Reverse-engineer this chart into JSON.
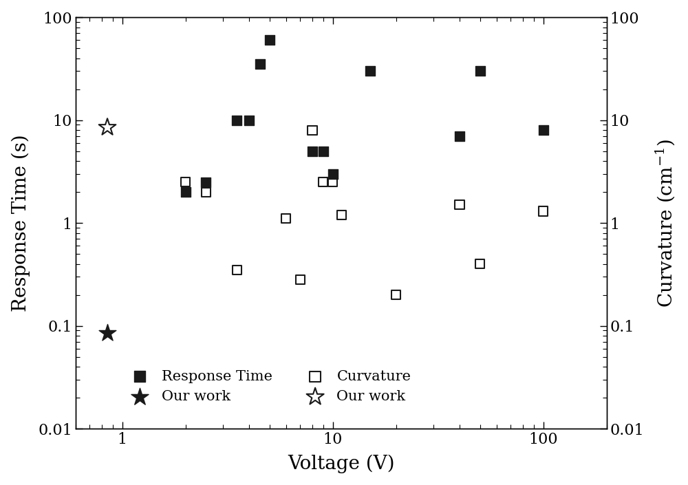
{
  "title": "",
  "xlabel": "Voltage (V)",
  "ylabel_left": "Response Time (s)",
  "ylabel_right": "Curvature (cm$^{-1}$)",
  "xlim": [
    0.6,
    200
  ],
  "ylim_left": [
    0.01,
    100
  ],
  "ylim_right": [
    0.01,
    100
  ],
  "response_time_x": [
    2.0,
    2.5,
    3.5,
    4.0,
    4.5,
    5.0,
    8.0,
    9.0,
    10.0,
    15.0,
    40.0,
    50.0,
    100.0
  ],
  "response_time_y": [
    2.0,
    2.5,
    10.0,
    10.0,
    35.0,
    60.0,
    5.0,
    5.0,
    3.0,
    30.0,
    7.0,
    30.0,
    8.0
  ],
  "curvature_x": [
    2.0,
    2.5,
    3.5,
    6.0,
    7.0,
    8.0,
    9.0,
    10.0,
    11.0,
    20.0,
    40.0,
    50.0,
    100.0
  ],
  "curvature_y": [
    2.5,
    2.0,
    0.35,
    1.1,
    0.28,
    8.0,
    2.5,
    2.5,
    1.2,
    0.2,
    1.5,
    0.4,
    1.3
  ],
  "our_work_rt_x": [
    0.85
  ],
  "our_work_rt_y": [
    0.085
  ],
  "our_work_curv_x": [
    0.85
  ],
  "our_work_curv_y": [
    8.5
  ],
  "background_color": "#ffffff",
  "marker_color_filled": "#1a1a1a",
  "marker_color_open": "#1a1a1a",
  "fontsize_label": 20,
  "fontsize_tick": 16,
  "fontsize_legend": 15
}
